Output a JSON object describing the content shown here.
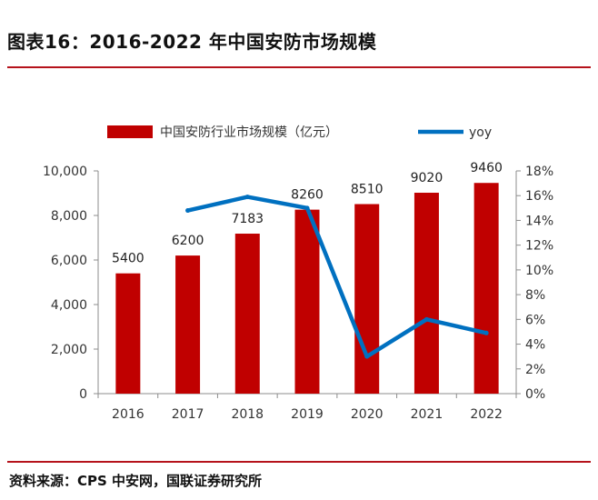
{
  "header": {
    "title": "图表16：2016-2022 年中国安防市场规模"
  },
  "footer": {
    "source": "资料来源：CPS 中安网，国联证券研究所"
  },
  "chart_data": {
    "type": "bar",
    "categories": [
      "2016",
      "2017",
      "2018",
      "2019",
      "2020",
      "2021",
      "2022"
    ],
    "series": [
      {
        "name": "中国安防行业市场规模（亿元）",
        "type": "bar",
        "axis": "left",
        "color": "#c00000",
        "values": [
          5400,
          6200,
          7183,
          8260,
          8510,
          9020,
          9460
        ],
        "data_labels": [
          "5400",
          "6200",
          "7183",
          "8260",
          "8510",
          "9020",
          "9460"
        ]
      },
      {
        "name": "yoy",
        "type": "line",
        "axis": "right",
        "color": "#0070c0",
        "values": [
          null,
          14.8,
          15.9,
          15.0,
          3.0,
          6.0,
          4.9
        ]
      }
    ],
    "y_left": {
      "lim": [
        0,
        10000
      ],
      "ticks": [
        0,
        2000,
        4000,
        6000,
        8000,
        10000
      ],
      "tick_labels": [
        "0",
        "2,000",
        "4,000",
        "6,000",
        "8,000",
        "10,000"
      ]
    },
    "y_right": {
      "lim": [
        0,
        18
      ],
      "ticks": [
        0,
        2,
        4,
        6,
        8,
        10,
        12,
        14,
        16,
        18
      ],
      "tick_labels": [
        "0%",
        "2%",
        "4%",
        "6%",
        "8%",
        "10%",
        "12%",
        "14%",
        "16%",
        "18%"
      ]
    },
    "grid": false,
    "legend": "top"
  }
}
